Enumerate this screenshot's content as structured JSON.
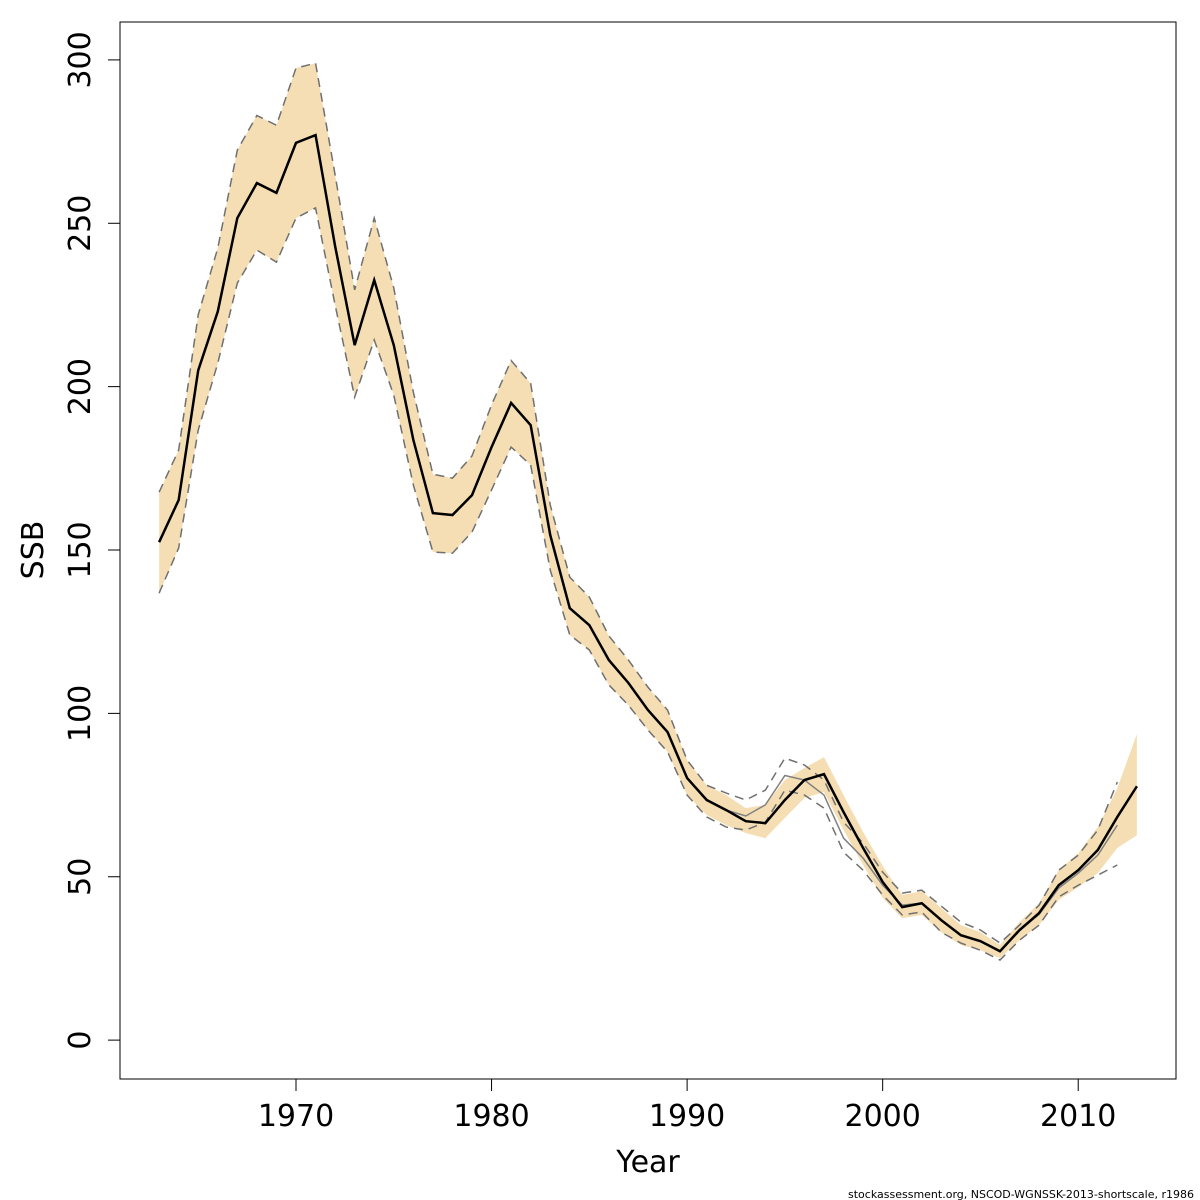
{
  "chart_data": {
    "type": "line",
    "xlabel": "Year",
    "ylabel": "SSB",
    "footer": "stockassessment.org, NSCOD-WGNSSK-2013-shortscale, r1986",
    "x": [
      1963,
      1964,
      1965,
      1966,
      1967,
      1968,
      1969,
      1970,
      1971,
      1972,
      1973,
      1974,
      1975,
      1976,
      1977,
      1978,
      1979,
      1980,
      1981,
      1982,
      1983,
      1984,
      1985,
      1986,
      1987,
      1988,
      1989,
      1990,
      1991,
      1992,
      1993,
      1994,
      1995,
      1996,
      1997,
      1998,
      1999,
      2000,
      2001,
      2002,
      2003,
      2004,
      2005,
      2006,
      2007,
      2008,
      2009,
      2010,
      2011,
      2012,
      2013
    ],
    "band": {
      "color": "#f5deb3",
      "upper": [
        167.7,
        180.6,
        222,
        242.4,
        272.4,
        283,
        280,
        297.5,
        299,
        264.8,
        229.6,
        251.6,
        230.2,
        198.3,
        173.2,
        172,
        178.8,
        194.4,
        208,
        201,
        163.8,
        141.7,
        135.6,
        123.7,
        116.3,
        108,
        101,
        85.7,
        78,
        75,
        71,
        72,
        79.6,
        83.3,
        86.6,
        75,
        63.7,
        53.3,
        44.4,
        45.6,
        40.4,
        35.2,
        33,
        29.1,
        36.1,
        41.9,
        52,
        57.2,
        65.2,
        77.1,
        93.7
      ],
      "lower": [
        136.8,
        150.6,
        186.7,
        207.2,
        231.7,
        241.8,
        238.1,
        251.6,
        254.7,
        225,
        196.8,
        214.3,
        197.4,
        169.9,
        149.4,
        149,
        155.5,
        168.4,
        181.5,
        176,
        143.9,
        124,
        119.4,
        108.7,
        102.5,
        94.9,
        88.2,
        75,
        68.9,
        65.8,
        63.4,
        61.8,
        68,
        74.1,
        75.9,
        64.3,
        53.6,
        43.5,
        37.3,
        38.3,
        33,
        29.1,
        27.5,
        25.1,
        30.6,
        35.2,
        42.9,
        46.8,
        51.1,
        58.8,
        62.7
      ]
    },
    "series": [
      {
        "color": "#808080",
        "width": 1.5,
        "dashed": false,
        "values": [
          152.4,
          165.3,
          205,
          223,
          251.6,
          262.3,
          259.3,
          274.6,
          277,
          243,
          212.7,
          232.6,
          212.7,
          183.7,
          161.3,
          160.7,
          166.8,
          181.5,
          195,
          188.2,
          154.6,
          132.2,
          127,
          116.3,
          109.3,
          101,
          94.3,
          80.2,
          73.5,
          70.4,
          68.6,
          72,
          81,
          79.6,
          75,
          61.8,
          55.7,
          47.4,
          41.3,
          41.9,
          36.5,
          32,
          30.2,
          27,
          33.5,
          38.5,
          46.5,
          51.1,
          56.6,
          65.8,
          null
        ]
      },
      {
        "color": "#707070",
        "width": 1.5,
        "dashed": true,
        "values": [
          167.7,
          180.6,
          222,
          242.4,
          272.4,
          283,
          280,
          297.5,
          299,
          264.8,
          229.6,
          251.6,
          230.2,
          198.3,
          173.2,
          172,
          178.8,
          194.4,
          208,
          201,
          163.8,
          141.7,
          135.6,
          123.7,
          116.3,
          108,
          101,
          85.7,
          78,
          75.6,
          73.5,
          76.5,
          86.3,
          84.2,
          79.6,
          66.7,
          60.3,
          51.4,
          45,
          45.9,
          41,
          36.1,
          33.7,
          29.7,
          35.2,
          41.3,
          52,
          56.6,
          64.3,
          79,
          null
        ]
      },
      {
        "color": "#707070",
        "width": 1.5,
        "dashed": true,
        "values": [
          136.8,
          150.6,
          186.7,
          207.2,
          231.7,
          241.8,
          238.1,
          251.6,
          254.7,
          225,
          196.8,
          214.3,
          197.4,
          169.9,
          149.4,
          149,
          155.5,
          168.4,
          181.5,
          176,
          143.9,
          124,
          119.4,
          108.7,
          102.5,
          94.9,
          88.2,
          75,
          68.3,
          65.2,
          64.3,
          66.7,
          76.5,
          75,
          71,
          57.5,
          52,
          44.4,
          38.3,
          39.2,
          33,
          29.7,
          27.5,
          24.5,
          30.6,
          35.2,
          43.8,
          47.4,
          50.5,
          53.6,
          null
        ]
      },
      {
        "color": "#000000",
        "width": 2.5,
        "dashed": false,
        "values": [
          152.4,
          165.3,
          205,
          223,
          251.6,
          262.3,
          259.3,
          274.6,
          277,
          243,
          212.7,
          232.6,
          212.7,
          183.7,
          161.3,
          160.7,
          166.8,
          181.5,
          195,
          188.2,
          154.6,
          132.2,
          127,
          116.3,
          109.3,
          101,
          94.3,
          80.2,
          73.5,
          70.4,
          67,
          66.4,
          73.5,
          79.6,
          81.4,
          69.8,
          58.8,
          48.4,
          40.7,
          41.9,
          36.7,
          32.1,
          30.3,
          27.2,
          33.7,
          38.9,
          47.4,
          52,
          58.2,
          68.3,
          77.7
        ]
      }
    ],
    "xlim": [
      1961,
      2015
    ],
    "ylim": [
      -11.9,
      311.6
    ],
    "xticks": [
      1970,
      1980,
      1990,
      2000,
      2010
    ],
    "yticks": [
      0,
      50,
      100,
      150,
      200,
      250,
      300
    ]
  }
}
